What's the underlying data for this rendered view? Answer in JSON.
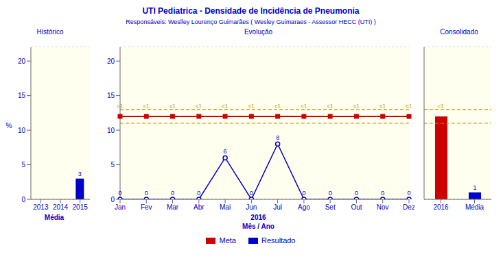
{
  "title": "UTI Pediatrica - Densidade de Incidência de Pneumonia",
  "subtitle": "Responsáveis: Weslley Lourenço Guimarães ( Wesley Guimaraes - Assessor HECC (UTI) )",
  "chart_data": [
    {
      "type": "bar",
      "title": "Histórico",
      "categories": [
        "2013",
        "2014",
        "2015"
      ],
      "values": [
        0,
        0,
        3
      ],
      "color": "#0000CC",
      "xlabel": "Média",
      "ylabel": "%",
      "ylim": [
        0,
        22
      ],
      "yticks": [
        0,
        5,
        10,
        15,
        20
      ],
      "grid": true,
      "data_labels": true
    },
    {
      "type": "line",
      "title": "Evolução",
      "categories": [
        "Jan",
        "Fev",
        "Mar",
        "Abr",
        "Mai",
        "Jun",
        "Jul",
        "Ago",
        "Set",
        "Out",
        "Nov",
        "Dez"
      ],
      "xlabel": "2016\nMês / Ano",
      "ylim": [
        0,
        22
      ],
      "yticks": [
        0,
        5,
        10,
        15,
        20
      ],
      "grid": true,
      "legend": "bottom",
      "series": [
        {
          "name": "Meta",
          "color": "#CC0000",
          "marker": "square",
          "values": [
            12,
            12,
            12,
            12,
            12,
            12,
            12,
            12,
            12,
            12,
            12,
            12
          ]
        },
        {
          "name": "Resultado",
          "color": "#0000CC",
          "marker": "circle",
          "data_labels": true,
          "values": [
            0,
            0,
            0,
            0,
            6,
            0,
            8,
            0,
            0,
            0,
            0,
            0
          ]
        }
      ],
      "hlines": [
        {
          "value": 13,
          "label": "c1",
          "label_categories": [
            "Jan",
            "Fev",
            "Mar",
            "Abr",
            "Mai",
            "Jun",
            "Jul",
            "Ago",
            "Set",
            "Out",
            "Nov",
            "Dez"
          ],
          "color": "#CC8800",
          "line_style": "dashed"
        },
        {
          "value": 11,
          "color": "#CC8800",
          "line_style": "dashed"
        }
      ]
    },
    {
      "type": "bar",
      "title": "Consolidado",
      "categories": [
        "2016",
        "Média"
      ],
      "values": [
        12,
        1
      ],
      "colors": [
        "#CC0000",
        "#0000CC"
      ],
      "value_labels": [
        null,
        "1"
      ],
      "data_labels": true,
      "ylim": [
        0,
        22
      ],
      "yticks": [
        0,
        5,
        10,
        15,
        20
      ],
      "grid": true,
      "tick_labels": "x",
      "hlines": [
        {
          "value": 13,
          "label": "c1",
          "label_categories": [
            "2016"
          ],
          "color": "#CC8800",
          "line_style": "dashed"
        },
        {
          "value": 11,
          "color": "#CC8800",
          "line_style": "dashed"
        }
      ]
    }
  ]
}
